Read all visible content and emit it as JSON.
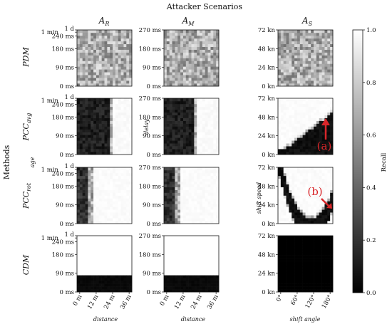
{
  "figure": {
    "title": "Attacker Scenarios",
    "methods_label": "Methods",
    "colorbar_label": "Recall",
    "colorbar_ticks": [
      "0.0",
      "0.2",
      "0.4",
      "0.6",
      "0.8",
      "1.0"
    ]
  },
  "columns": [
    {
      "label_main": "A",
      "label_sub": "R",
      "y_axis_title": "age",
      "y_ticks": [
        "0 ms",
        "90 ms",
        "180 ms",
        "240 ms",
        "1 min",
        "1 d"
      ],
      "x_ticks": [
        "0 m",
        "12 m",
        "24 m",
        "36 m"
      ],
      "x_axis_title": "distance"
    },
    {
      "label_main": "A",
      "label_sub": "M",
      "y_axis_title": "delay",
      "y_ticks": [
        "0 ms",
        "90 ms",
        "180 ms",
        "270 ms"
      ],
      "x_ticks": [
        "0 m",
        "12 m",
        "24 m",
        "36 m"
      ],
      "x_axis_title": "distance"
    },
    {
      "label_main": "A",
      "label_sub": "S",
      "y_axis_title": "shift speed",
      "y_ticks": [
        "0 kn",
        "24 kn",
        "48 kn",
        "72 kn"
      ],
      "x_ticks": [
        "0°",
        "60°",
        "120°",
        "180°"
      ],
      "x_axis_title": "shift angle"
    }
  ],
  "rows": [
    {
      "label_main": "PDM",
      "label_sub": ""
    },
    {
      "label_main": "PCC",
      "label_sub": "avg"
    },
    {
      "label_main": "PCC",
      "label_sub": "rot"
    },
    {
      "label_main": "CDM",
      "label_sub": ""
    }
  ],
  "annotations": [
    {
      "row": 1,
      "col": 2,
      "text": "(a)"
    },
    {
      "row": 2,
      "col": 2,
      "text": "(b)"
    }
  ],
  "chart_data": {
    "type": "heatmap",
    "layout": "4x3 grid of heatmaps",
    "value_range": [
      0,
      1
    ],
    "colormap": "grayscale (0.0 = black, 1.0 = white)",
    "grid": false,
    "panels": [
      {
        "row": "PDM",
        "column": "A_R",
        "pattern": "noise",
        "approx_recall": "0.5–0.9 uniform noise"
      },
      {
        "row": "PDM",
        "column": "A_M",
        "pattern": "noise",
        "approx_recall": "0.5–0.9 uniform noise"
      },
      {
        "row": "PDM",
        "column": "A_S",
        "pattern": "noise",
        "approx_recall": "0.4–0.9 uniform noise"
      },
      {
        "row": "PCC_avg",
        "column": "A_R",
        "pattern": "low below distance threshold",
        "threshold_x": 22,
        "below": 0.1,
        "above": 1.0
      },
      {
        "row": "PCC_avg",
        "column": "A_M",
        "pattern": "low below distance threshold",
        "threshold_x": 20,
        "below": 0.1,
        "above": 1.0
      },
      {
        "row": "PCC_avg",
        "column": "A_S",
        "pattern": "low below curve rising with shift angle",
        "below": 0.0,
        "above": 1.0
      },
      {
        "row": "PCC_rot",
        "column": "A_R",
        "pattern": "low below distance threshold",
        "threshold_x": 8,
        "below": 0.15,
        "above": 1.0
      },
      {
        "row": "PCC_rot",
        "column": "A_M",
        "pattern": "low below distance threshold",
        "threshold_x": 8,
        "below": 0.15,
        "above": 1.0
      },
      {
        "row": "PCC_rot",
        "column": "A_S",
        "pattern": "low inside U-shaped band",
        "below": 0.0,
        "above": 1.0
      },
      {
        "row": "CDM",
        "column": "A_R",
        "pattern": "low below age threshold",
        "threshold_y": "90 ms",
        "below": 0.0,
        "above": 1.0
      },
      {
        "row": "CDM",
        "column": "A_M",
        "pattern": "low below delay threshold",
        "threshold_y": "90 ms",
        "below": 0.0,
        "above": 1.0
      },
      {
        "row": "CDM",
        "column": "A_S",
        "pattern": "all low",
        "value": 0.0
      }
    ]
  }
}
